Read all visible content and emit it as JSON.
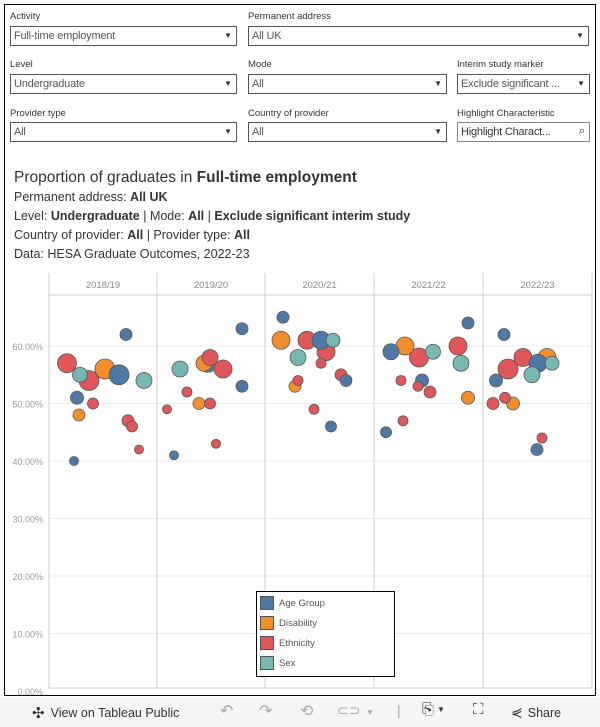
{
  "filters": {
    "activity": {
      "label": "Activity",
      "value": "Full-time employment"
    },
    "permanent_address": {
      "label": "Permanent address",
      "value": "All UK"
    },
    "level": {
      "label": "Level",
      "value": "Undergraduate"
    },
    "mode": {
      "label": "Mode",
      "value": "All"
    },
    "interim": {
      "label": "Interim study marker",
      "value": "Exclude significant ..."
    },
    "provider_type": {
      "label": "Provider type",
      "value": "All"
    },
    "country": {
      "label": "Country of provider",
      "value": "All"
    },
    "highlight": {
      "label": "Highlight Characteristic",
      "placeholder": "Highlight Charact..."
    }
  },
  "heading": {
    "title_prefix": "Proportion of graduates in ",
    "title_bold": "Full-time employment",
    "l1_prefix": "Permanent address: ",
    "l1_bold": "All UK",
    "l2_a": "Level: ",
    "l2_b": "Undergraduate",
    "l2_c": " | Mode: ",
    "l2_d": "All",
    "l2_e": " | ",
    "l2_f": "Exclude significant interim study",
    "l3_a": "Country of provider: ",
    "l3_b": "All",
    "l3_c": " | Provider type: ",
    "l3_d": "All",
    "l4": "Data: HESA Graduate Outcomes, 2022-23"
  },
  "legend": [
    {
      "label": "Age Group",
      "color": "#4e79a7"
    },
    {
      "label": "Disability",
      "color": "#f28e2b"
    },
    {
      "label": "Ethnicity",
      "color": "#e15759"
    },
    {
      "label": "Sex",
      "color": "#76b7b2"
    }
  ],
  "chart_data": {
    "type": "scatter",
    "columns": [
      "2018/19",
      "2019/20",
      "2020/21",
      "2021/22",
      "2022/23"
    ],
    "y_ticks": [
      "0.00%",
      "10.00%",
      "20.00%",
      "30.00%",
      "40.00%",
      "50.00%",
      "60.00%"
    ],
    "ylim": [
      0,
      70
    ],
    "grid": true,
    "legend_position": "bottom-center",
    "points": [
      [
        [
          "Ethnicity",
          57
        ],
        [
          "Sex",
          55
        ],
        [
          "Ethnicity",
          54
        ],
        [
          "Disability",
          56
        ],
        [
          "Age Group",
          55
        ],
        [
          "Sex",
          54
        ],
        [
          "Age Group",
          62
        ],
        [
          "Age Group",
          51
        ],
        [
          "Ethnicity",
          50
        ],
        [
          "Disability",
          48
        ],
        [
          "Ethnicity",
          47
        ],
        [
          "Ethnicity",
          46
        ],
        [
          "Ethnicity",
          42
        ],
        [
          "Age Group",
          40
        ]
      ],
      [
        [
          "Sex",
          56
        ],
        [
          "Disability",
          57
        ],
        [
          "Ethnicity",
          58
        ],
        [
          "Age Group",
          57
        ],
        [
          "Ethnicity",
          56
        ],
        [
          "Age Group",
          63
        ],
        [
          "Age Group",
          53
        ],
        [
          "Ethnicity",
          52
        ],
        [
          "Disability",
          50
        ],
        [
          "Ethnicity",
          50
        ],
        [
          "Ethnicity",
          49
        ],
        [
          "Ethnicity",
          43
        ],
        [
          "Age Group",
          41
        ]
      ],
      [
        [
          "Age Group",
          65
        ],
        [
          "Disability",
          61
        ],
        [
          "Ethnicity",
          61
        ],
        [
          "Sex",
          61
        ],
        [
          "Ethnicity",
          59
        ],
        [
          "Age Group",
          61
        ],
        [
          "Sex",
          58
        ],
        [
          "Ethnicity",
          57
        ],
        [
          "Ethnicity",
          54
        ],
        [
          "Disability",
          53
        ],
        [
          "Ethnicity",
          55
        ],
        [
          "Age Group",
          54
        ],
        [
          "Ethnicity",
          49
        ],
        [
          "Age Group",
          46
        ]
      ],
      [
        [
          "Age Group",
          59
        ],
        [
          "Disability",
          60
        ],
        [
          "Ethnicity",
          58
        ],
        [
          "Sex",
          59
        ],
        [
          "Ethnicity",
          60
        ],
        [
          "Sex",
          57
        ],
        [
          "Age Group",
          64
        ],
        [
          "Ethnicity",
          54
        ],
        [
          "Age Group",
          54
        ],
        [
          "Ethnicity",
          53
        ],
        [
          "Ethnicity",
          52
        ],
        [
          "Disability",
          51
        ],
        [
          "Ethnicity",
          47
        ],
        [
          "Age Group",
          45
        ]
      ],
      [
        [
          "Age Group",
          62
        ],
        [
          "Ethnicity",
          58
        ],
        [
          "Disability",
          58
        ],
        [
          "Sex",
          57
        ],
        [
          "Age Group",
          57
        ],
        [
          "Ethnicity",
          56
        ],
        [
          "Sex",
          55
        ],
        [
          "Age Group",
          54
        ],
        [
          "Ethnicity",
          51
        ],
        [
          "Ethnicity",
          50
        ],
        [
          "Disability",
          50
        ],
        [
          "Ethnicity",
          44
        ],
        [
          "Age Group",
          42
        ]
      ]
    ]
  },
  "toolbar": {
    "view_label": "View on Tableau Public",
    "share_label": "Share"
  }
}
